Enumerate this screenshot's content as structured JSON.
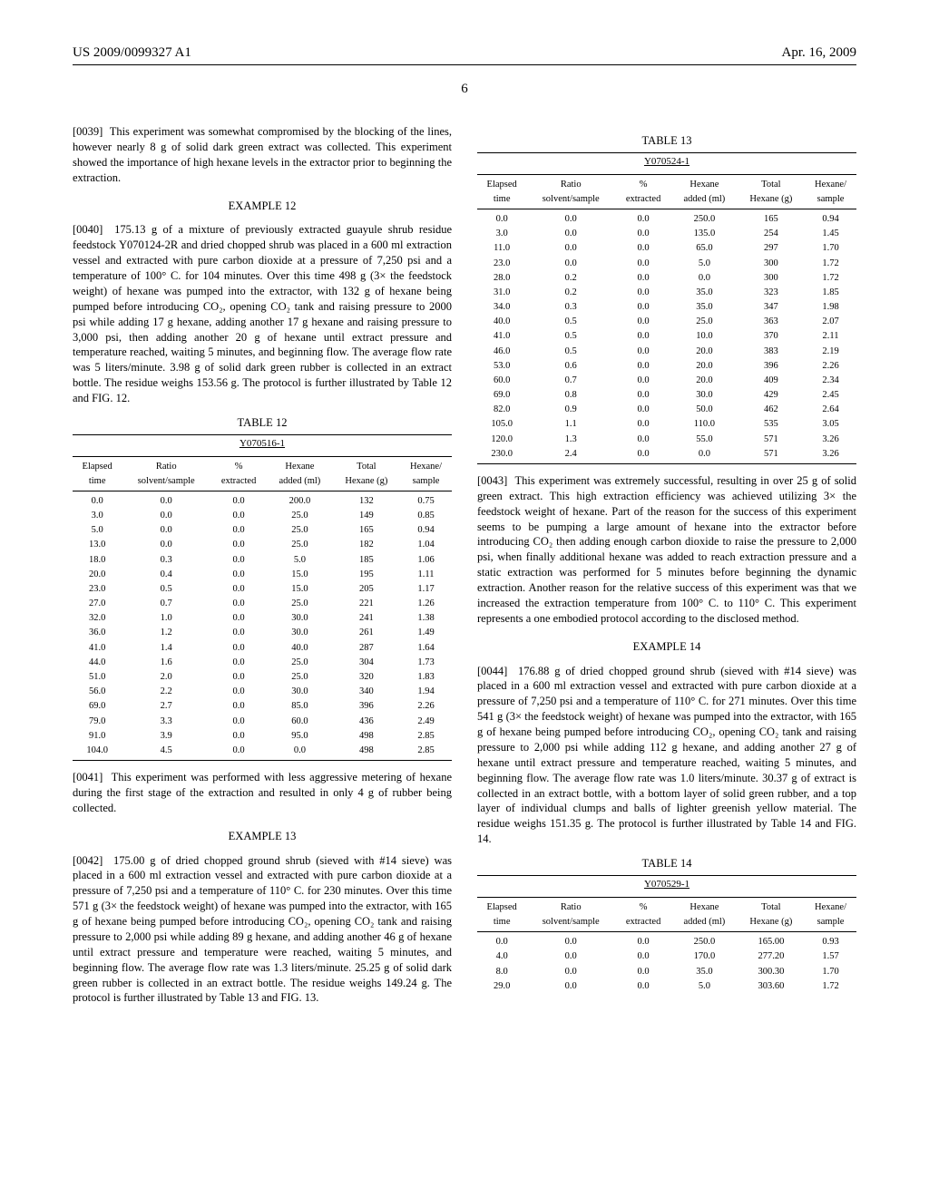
{
  "header": {
    "left": "US 2009/0099327 A1",
    "right": "Apr. 16, 2009"
  },
  "page_number": "6",
  "col1": {
    "para_0039_num": "[0039]",
    "para_0039": "This experiment was somewhat compromised by the blocking of the lines, however nearly 8 g of solid dark green extract was collected. This experiment showed the importance of high hexane levels in the extractor prior to beginning the extraction.",
    "example12_heading": "EXAMPLE 12",
    "para_0040_num": "[0040]",
    "para_0040": "175.13 g of a mixture of previously extracted guayule shrub residue feedstock Y070124-2R and dried chopped shrub was placed in a 600 ml extraction vessel and extracted with pure carbon dioxide at a pressure of 7,250 psi and a temperature of 100° C. for 104 minutes. Over this time 498 g (3× the feedstock weight) of hexane was pumped into the extractor, with 132 g of hexane being pumped before introducing CO₂, opening CO₂ tank and raising pressure to 2000 psi while adding 17 g hexane, adding another 17 g hexane and raising pressure to 3,000 psi, then adding another 20 g of hexane until extract pressure and temperature reached, waiting 5 minutes, and beginning flow. The average flow rate was 5 liters/minute. 3.98 g of solid dark green rubber is collected in an extract bottle. The residue weighs 153.56 g. The protocol is further illustrated by Table 12 and FIG. 12.",
    "table12": {
      "caption": "TABLE 12",
      "subcaption": "Y070516-1",
      "columns_row1": [
        "Elapsed",
        "Ratio",
        "%",
        "Hexane",
        "Total",
        "Hexane/"
      ],
      "columns_row2": [
        "time",
        "solvent/sample",
        "extracted",
        "added (ml)",
        "Hexane (g)",
        "sample"
      ],
      "rows": [
        [
          "0.0",
          "0.0",
          "0.0",
          "200.0",
          "132",
          "0.75"
        ],
        [
          "3.0",
          "0.0",
          "0.0",
          "25.0",
          "149",
          "0.85"
        ],
        [
          "5.0",
          "0.0",
          "0.0",
          "25.0",
          "165",
          "0.94"
        ],
        [
          "13.0",
          "0.0",
          "0.0",
          "25.0",
          "182",
          "1.04"
        ],
        [
          "18.0",
          "0.3",
          "0.0",
          "5.0",
          "185",
          "1.06"
        ],
        [
          "20.0",
          "0.4",
          "0.0",
          "15.0",
          "195",
          "1.11"
        ],
        [
          "23.0",
          "0.5",
          "0.0",
          "15.0",
          "205",
          "1.17"
        ],
        [
          "27.0",
          "0.7",
          "0.0",
          "25.0",
          "221",
          "1.26"
        ],
        [
          "32.0",
          "1.0",
          "0.0",
          "30.0",
          "241",
          "1.38"
        ],
        [
          "36.0",
          "1.2",
          "0.0",
          "30.0",
          "261",
          "1.49"
        ],
        [
          "41.0",
          "1.4",
          "0.0",
          "40.0",
          "287",
          "1.64"
        ],
        [
          "44.0",
          "1.6",
          "0.0",
          "25.0",
          "304",
          "1.73"
        ],
        [
          "51.0",
          "2.0",
          "0.0",
          "25.0",
          "320",
          "1.83"
        ],
        [
          "56.0",
          "2.2",
          "0.0",
          "30.0",
          "340",
          "1.94"
        ],
        [
          "69.0",
          "2.7",
          "0.0",
          "85.0",
          "396",
          "2.26"
        ],
        [
          "79.0",
          "3.3",
          "0.0",
          "60.0",
          "436",
          "2.49"
        ],
        [
          "91.0",
          "3.9",
          "0.0",
          "95.0",
          "498",
          "2.85"
        ],
        [
          "104.0",
          "4.5",
          "0.0",
          "0.0",
          "498",
          "2.85"
        ]
      ]
    },
    "para_0041_num": "[0041]",
    "para_0041": "This experiment was performed with less aggressive metering of hexane during the first stage of the extraction and resulted in only 4 g of rubber being collected.",
    "example13_heading": "EXAMPLE 13",
    "para_0042_num": "[0042]",
    "para_0042": "175.00 g of dried chopped ground shrub (sieved with #14 sieve) was placed in a 600 ml extraction vessel and extracted with pure carbon dioxide at a pressure of 7,250 psi and a temperature of 110° C. for 230 minutes. Over this time 571 g (3× the feedstock weight) of hexane was pumped into the extractor, with 165 g of hexane being pumped before introducing CO₂, opening CO₂ tank and raising pressure to 2,000 psi while adding 89 g hexane, and adding another 46 g of hexane until extract pressure and temperature were reached, waiting 5 minutes, and beginning flow. The average flow rate was 1.3 liters/minute. 25.25 g of solid dark green rubber is collected in an extract bottle. The residue weighs 149.24 g. The protocol is further illustrated by Table 13 and FIG. 13."
  },
  "col2": {
    "table13": {
      "caption": "TABLE 13",
      "subcaption": "Y070524-1",
      "columns_row1": [
        "Elapsed",
        "Ratio",
        "%",
        "Hexane",
        "Total",
        "Hexane/"
      ],
      "columns_row2": [
        "time",
        "solvent/sample",
        "extracted",
        "added (ml)",
        "Hexane (g)",
        "sample"
      ],
      "rows": [
        [
          "0.0",
          "0.0",
          "0.0",
          "250.0",
          "165",
          "0.94"
        ],
        [
          "3.0",
          "0.0",
          "0.0",
          "135.0",
          "254",
          "1.45"
        ],
        [
          "11.0",
          "0.0",
          "0.0",
          "65.0",
          "297",
          "1.70"
        ],
        [
          "23.0",
          "0.0",
          "0.0",
          "5.0",
          "300",
          "1.72"
        ],
        [
          "28.0",
          "0.2",
          "0.0",
          "0.0",
          "300",
          "1.72"
        ],
        [
          "31.0",
          "0.2",
          "0.0",
          "35.0",
          "323",
          "1.85"
        ],
        [
          "34.0",
          "0.3",
          "0.0",
          "35.0",
          "347",
          "1.98"
        ],
        [
          "40.0",
          "0.5",
          "0.0",
          "25.0",
          "363",
          "2.07"
        ],
        [
          "41.0",
          "0.5",
          "0.0",
          "10.0",
          "370",
          "2.11"
        ],
        [
          "46.0",
          "0.5",
          "0.0",
          "20.0",
          "383",
          "2.19"
        ],
        [
          "53.0",
          "0.6",
          "0.0",
          "20.0",
          "396",
          "2.26"
        ],
        [
          "60.0",
          "0.7",
          "0.0",
          "20.0",
          "409",
          "2.34"
        ],
        [
          "69.0",
          "0.8",
          "0.0",
          "30.0",
          "429",
          "2.45"
        ],
        [
          "82.0",
          "0.9",
          "0.0",
          "50.0",
          "462",
          "2.64"
        ],
        [
          "105.0",
          "1.1",
          "0.0",
          "110.0",
          "535",
          "3.05"
        ],
        [
          "120.0",
          "1.3",
          "0.0",
          "55.0",
          "571",
          "3.26"
        ],
        [
          "230.0",
          "2.4",
          "0.0",
          "0.0",
          "571",
          "3.26"
        ]
      ]
    },
    "para_0043_num": "[0043]",
    "para_0043": "This experiment was extremely successful, resulting in over 25 g of solid green extract. This high extraction efficiency was achieved utilizing 3× the feedstock weight of hexane. Part of the reason for the success of this experiment seems to be pumping a large amount of hexane into the extractor before introducing CO₂ then adding enough carbon dioxide to raise the pressure to 2,000 psi, when finally additional hexane was added to reach extraction pressure and a static extraction was performed for 5 minutes before beginning the dynamic extraction. Another reason for the relative success of this experiment was that we increased the extraction temperature from 100° C. to 110° C. This experiment represents a one embodied protocol according to the disclosed method.",
    "example14_heading": "EXAMPLE 14",
    "para_0044_num": "[0044]",
    "para_0044": "176.88 g of dried chopped ground shrub (sieved with #14 sieve) was placed in a 600 ml extraction vessel and extracted with pure carbon dioxide at a pressure of 7,250 psi and a temperature of 110° C. for 271 minutes. Over this time 541 g (3× the feedstock weight) of hexane was pumped into the extractor, with 165 g of hexane being pumped before introducing CO₂, opening CO₂ tank and raising pressure to 2,000 psi while adding 112 g hexane, and adding another 27 g of hexane until extract pressure and temperature reached, waiting 5 minutes, and beginning flow. The average flow rate was 1.0 liters/minute. 30.37 g of extract is collected in an extract bottle, with a bottom layer of solid green rubber, and a top layer of individual clumps and balls of lighter greenish yellow material. The residue weighs 151.35 g. The protocol is further illustrated by Table 14 and FIG. 14.",
    "table14": {
      "caption": "TABLE 14",
      "subcaption": "Y070529-1",
      "columns_row1": [
        "Elapsed",
        "Ratio",
        "%",
        "Hexane",
        "Total",
        "Hexane/"
      ],
      "columns_row2": [
        "time",
        "solvent/sample",
        "extracted",
        "added (ml)",
        "Hexane (g)",
        "sample"
      ],
      "rows": [
        [
          "0.0",
          "0.0",
          "0.0",
          "250.0",
          "165.00",
          "0.93"
        ],
        [
          "4.0",
          "0.0",
          "0.0",
          "170.0",
          "277.20",
          "1.57"
        ],
        [
          "8.0",
          "0.0",
          "0.0",
          "35.0",
          "300.30",
          "1.70"
        ],
        [
          "29.0",
          "0.0",
          "0.0",
          "5.0",
          "303.60",
          "1.72"
        ]
      ]
    }
  }
}
